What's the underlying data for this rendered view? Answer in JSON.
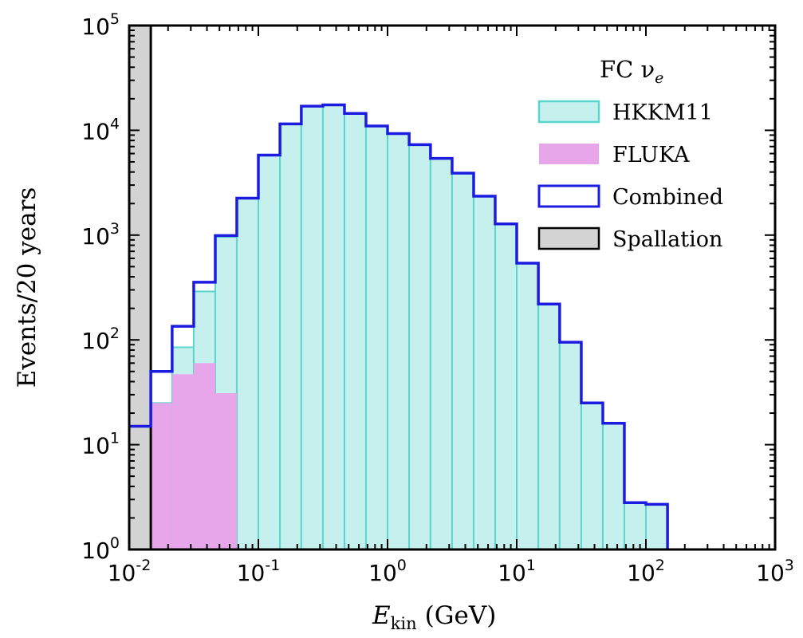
{
  "chart_data": {
    "type": "bar",
    "x_scale": "log",
    "y_scale": "log",
    "xlim": [
      0.01,
      1000
    ],
    "ylim": [
      1,
      100000
    ],
    "xlabel": "E_kin (GeV)",
    "xlabel_main": "E",
    "xlabel_sub": "kin",
    "xlabel_unit": "(GeV)",
    "ylabel": "Events/20 years",
    "x_ticks": [
      {
        "base": "10",
        "exp": "-2"
      },
      {
        "base": "10",
        "exp": "-1"
      },
      {
        "base": "10",
        "exp": "0"
      },
      {
        "base": "10",
        "exp": "1"
      },
      {
        "base": "10",
        "exp": "2"
      },
      {
        "base": "10",
        "exp": "3"
      }
    ],
    "y_ticks": [
      {
        "base": "10",
        "exp": "0"
      },
      {
        "base": "10",
        "exp": "1"
      },
      {
        "base": "10",
        "exp": "2"
      },
      {
        "base": "10",
        "exp": "3"
      },
      {
        "base": "10",
        "exp": "4"
      },
      {
        "base": "10",
        "exp": "5"
      }
    ],
    "legend": {
      "position": "top-right",
      "title": "FC ν",
      "title_sub": "e"
    },
    "bin_edges": [
      0.01,
      0.0147,
      0.0215,
      0.0316,
      0.0464,
      0.0681,
      0.1,
      0.147,
      0.215,
      0.316,
      0.464,
      0.681,
      1.0,
      1.47,
      2.15,
      3.16,
      4.64,
      6.81,
      10.0,
      14.7,
      21.5,
      31.6,
      46.4,
      68.1,
      100.0,
      147.0
    ],
    "series": [
      {
        "name": "HKKM11",
        "style": "filled",
        "fill": "#c6f0ee",
        "stroke": "#5ad6cc",
        "values": [
          15,
          25,
          85,
          290,
          960,
          2250,
          5800,
          11500,
          17000,
          17500,
          14500,
          11000,
          9300,
          7300,
          5400,
          3900,
          2350,
          1280,
          540,
          220,
          95,
          25,
          16,
          2.8,
          2.7
        ]
      },
      {
        "name": "FLUKA",
        "style": "filled",
        "fill": "#e8a6ea",
        "stroke": "#e8a6ea",
        "values": [
          10,
          25,
          47,
          60,
          31,
          null,
          null,
          null,
          null,
          null,
          null,
          null,
          null,
          null,
          null,
          null,
          null,
          null,
          null,
          null,
          null,
          null,
          null,
          null,
          null
        ]
      },
      {
        "name": "Combined",
        "style": "step",
        "fill": "none",
        "stroke": "#1c1ce0",
        "values": [
          15,
          50,
          135,
          355,
          990,
          2250,
          5800,
          11500,
          17000,
          17500,
          14500,
          11000,
          9300,
          7300,
          5400,
          3900,
          2350,
          1280,
          540,
          220,
          95,
          25,
          16,
          2.8,
          2.7
        ]
      },
      {
        "name": "Spallation",
        "style": "filled",
        "fill": "#d3d3d3",
        "stroke": "#000000",
        "x_range": [
          0.01,
          0.0147
        ],
        "value": 100000
      }
    ]
  }
}
